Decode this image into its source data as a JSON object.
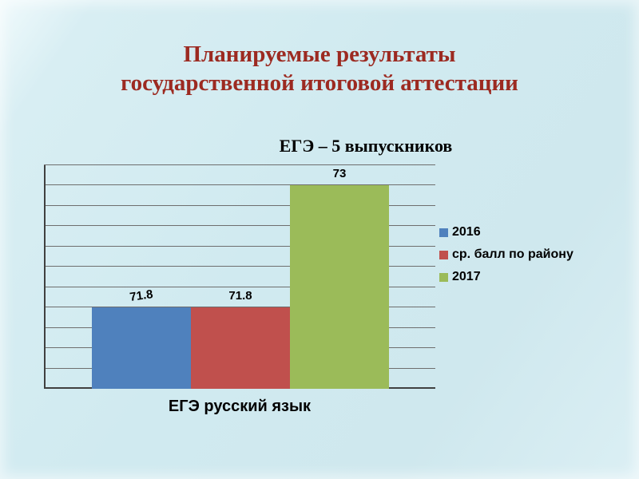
{
  "slide": {
    "title_lines": [
      "Планируемые результаты",
      "государственной итоговой аттестации"
    ]
  },
  "chart_data": {
    "type": "bar",
    "title": "ЕГЭ – 5 выпускников",
    "categories": [
      "ЕГЭ русский язык"
    ],
    "series": [
      {
        "name": "2016",
        "value": 71.8,
        "label": "71.8",
        "color": "#4f81bd",
        "label_rotation": -8
      },
      {
        "name": "ср. балл по району",
        "value": 71.8,
        "label": "71.8",
        "color": "#c0504d",
        "label_rotation": 0
      },
      {
        "name": "2017",
        "value": 73,
        "label": "73",
        "color": "#9bbb59",
        "label_rotation": 0
      }
    ],
    "ylim": [
      71,
      73.2
    ],
    "grid_step": 0.2,
    "grid": true,
    "legend_position": "right",
    "xlabel": "",
    "ylabel": ""
  },
  "colors": {
    "background": "#d0eaf0",
    "title": "#9c2a21",
    "gridline": "#6e6e6e",
    "axis": "#404040",
    "text": "#000000"
  }
}
